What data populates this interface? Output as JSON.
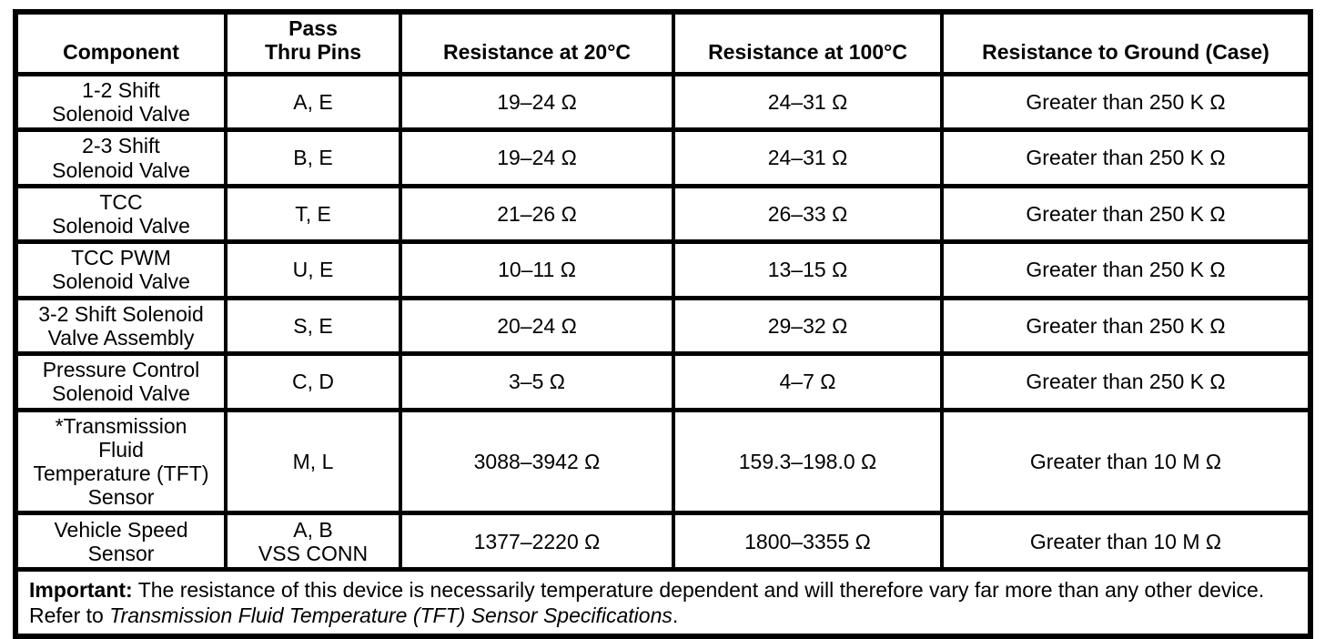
{
  "page": {
    "background_color": "#ffffff",
    "text_color": "#000000"
  },
  "table": {
    "headers": [
      "Component",
      [
        "Pass",
        "Thru Pins"
      ],
      "Resistance at 20°C",
      "Resistance at 100°C",
      "Resistance to Ground (Case)"
    ],
    "rows": [
      {
        "component": [
          "1-2 Shift",
          "Solenoid Valve"
        ],
        "pins": [
          "A, E"
        ],
        "r20": "19–24 Ω",
        "r100": "24–31 Ω",
        "ground": "Greater than 250 K Ω"
      },
      {
        "component": [
          "2-3 Shift",
          "Solenoid Valve"
        ],
        "pins": [
          "B, E"
        ],
        "r20": "19–24 Ω",
        "r100": "24–31 Ω",
        "ground": "Greater than 250 K Ω"
      },
      {
        "component": [
          "TCC",
          "Solenoid Valve"
        ],
        "pins": [
          "T, E"
        ],
        "r20": "21–26 Ω",
        "r100": "26–33 Ω",
        "ground": "Greater than 250 K Ω"
      },
      {
        "component": [
          "TCC PWM",
          "Solenoid Valve"
        ],
        "pins": [
          "U, E"
        ],
        "r20": "10–11 Ω",
        "r100": "13–15 Ω",
        "ground": "Greater than 250 K Ω"
      },
      {
        "component": [
          "3-2 Shift Solenoid",
          "Valve Assembly"
        ],
        "pins": [
          "S, E"
        ],
        "r20": "20–24 Ω",
        "r100": "29–32 Ω",
        "ground": "Greater than 250 K Ω"
      },
      {
        "component": [
          "Pressure Control",
          "Solenoid Valve"
        ],
        "pins": [
          "C, D"
        ],
        "r20": "3–5 Ω",
        "r100": "4–7 Ω",
        "ground": "Greater than 250 K Ω"
      },
      {
        "component": [
          "*Transmission",
          "Fluid",
          "Temperature (TFT)",
          "Sensor"
        ],
        "pins": [
          "M, L"
        ],
        "r20": "3088–3942 Ω",
        "r100": "159.3–198.0 Ω",
        "ground": "Greater than 10 M Ω"
      },
      {
        "component": [
          "Vehicle Speed",
          "Sensor"
        ],
        "pins": [
          "A, B",
          "VSS CONN"
        ],
        "r20": "1377–2220 Ω",
        "r100": "1800–3355 Ω",
        "ground": "Greater than 10 M Ω"
      }
    ]
  },
  "note": {
    "label": "Important:",
    "before_reference": " The resistance of this device is necessarily temperature dependent and will therefore vary far more than any other device. Refer to ",
    "reference": "Transmission Fluid Temperature (TFT) Sensor Specifications",
    "after_reference": "."
  }
}
